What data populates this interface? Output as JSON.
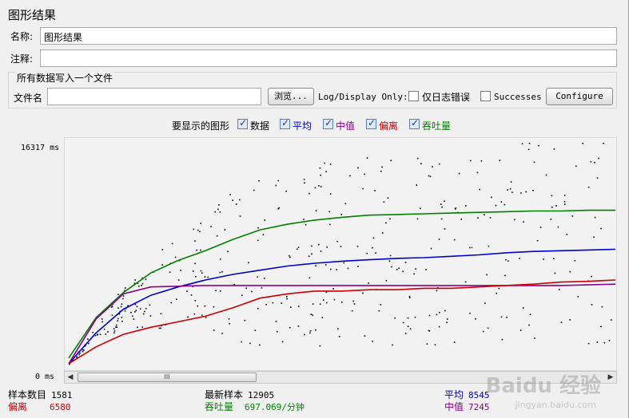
{
  "panel": {
    "title": "图形结果"
  },
  "name_field": {
    "label": "名称:",
    "value": "图形结果"
  },
  "comment_field": {
    "label": "注释:",
    "value": ""
  },
  "file_group": {
    "title": "所有数据写入一个文件",
    "file_label": "文件名",
    "file_value": "",
    "browse_label": "浏览...",
    "log_display_label": "Log/Display Only:",
    "errors_only_label": "仅日志错误",
    "successes_label": "Successes",
    "configure_label": "Configure"
  },
  "legend": {
    "prompt": "要显示的图形",
    "items": [
      {
        "label": "数据",
        "color": "#000000",
        "checked": true
      },
      {
        "label": "平均",
        "color": "#0000cc",
        "checked": true
      },
      {
        "label": "中值",
        "color": "#8b008b",
        "checked": true
      },
      {
        "label": "偏离",
        "color": "#cc0000",
        "checked": true
      },
      {
        "label": "吞吐量",
        "color": "#008000",
        "checked": true
      }
    ]
  },
  "axis": {
    "ymax_label": "16317 ms",
    "ymin_label": "0 ms",
    "scroll_thumb": "III"
  },
  "stats": {
    "samples_label": "样本数目",
    "samples_value": "1581",
    "deviation_label": "偏离",
    "deviation_value": "6580",
    "latest_label": "最新样本",
    "latest_value": "12905",
    "throughput_label": "吞吐量",
    "throughput_value": "697.069/分钟",
    "average_label": "平均",
    "average_value": "8545",
    "median_label": "中值",
    "median_value": "7245"
  },
  "colors": {
    "data": "#000000",
    "average": "#0000cc",
    "median": "#8b008b",
    "deviation": "#cc0000",
    "throughput": "#008000"
  },
  "chart_data": {
    "type": "line",
    "ylim": [
      0,
      16317
    ],
    "yunit": "ms",
    "grid": false,
    "series": [
      {
        "name": "吞吐量",
        "values": [
          700,
          3600,
          5400,
          6800,
          7700,
          8400,
          9200,
          9900,
          10300,
          10600,
          10800,
          10950,
          11000,
          11050,
          11100,
          11150,
          11200,
          11250,
          11250,
          11300,
          11300
        ]
      },
      {
        "name": "平均",
        "values": [
          300,
          2500,
          4200,
          5200,
          5800,
          6300,
          6700,
          7000,
          7300,
          7500,
          7650,
          7750,
          7850,
          7900,
          8000,
          8100,
          8250,
          8350,
          8400,
          8450,
          8500
        ]
      },
      {
        "name": "中值",
        "values": [
          300,
          3500,
          5300,
          5800,
          5850,
          5900,
          5900,
          5900,
          5900,
          5900,
          5900,
          5900,
          5900,
          5900,
          5900,
          5900,
          5900,
          5900,
          5900,
          5950,
          6000
        ]
      },
      {
        "name": "偏离",
        "values": [
          300,
          1500,
          2400,
          2900,
          3300,
          3700,
          4300,
          5000,
          5300,
          5500,
          5500,
          5600,
          5600,
          5700,
          5700,
          5800,
          5900,
          6000,
          6150,
          6200,
          6300
        ]
      }
    ]
  },
  "watermark": {
    "text": "Baidu 经验",
    "sub": "jingyan.baidu.com"
  }
}
